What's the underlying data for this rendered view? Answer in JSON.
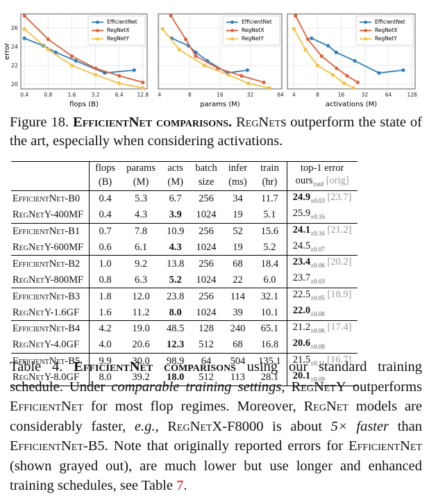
{
  "chart_data": [
    {
      "type": "line",
      "xlabel": "flops (B)",
      "ylabel": "error",
      "xscale": "log",
      "grid": true,
      "legend": "upper right",
      "xlim": [
        0.36,
        14.5
      ],
      "xticks": [
        0.4,
        0.8,
        1.6,
        3.2,
        6.4,
        12.8
      ],
      "ylim": [
        19.5,
        27.5
      ],
      "yticks": [
        20,
        22,
        24,
        26
      ],
      "series": [
        {
          "name": "EfficientNet",
          "color": "#2f7ebc",
          "x": [
            0.4,
            0.7,
            1.0,
            1.8,
            4.2,
            9.9
          ],
          "values": [
            24.9,
            24.1,
            23.4,
            22.5,
            21.2,
            21.5
          ]
        },
        {
          "name": "RegNetX",
          "color": "#e0603a",
          "x": [
            0.4,
            0.8,
            1.6,
            3.2,
            6.4,
            12.8
          ],
          "values": [
            27.3,
            24.8,
            23.0,
            21.7,
            20.9,
            20.2
          ]
        },
        {
          "name": "RegNetY",
          "color": "#f5c044",
          "x": [
            0.4,
            0.8,
            1.6,
            3.2,
            6.4,
            12.8
          ],
          "values": [
            25.9,
            23.7,
            22.0,
            21.0,
            20.1,
            19.6
          ]
        }
      ]
    },
    {
      "type": "line",
      "xlabel": "params (M)",
      "xscale": "log",
      "grid": true,
      "legend": "upper right",
      "xlim": [
        3.9,
        66
      ],
      "xticks": [
        4,
        8,
        16,
        32,
        64
      ],
      "ylim": [
        19.5,
        27.5
      ],
      "series": [
        {
          "name": "EfficientNet",
          "color": "#2f7ebc",
          "x": [
            5.3,
            7.8,
            9.2,
            12.0,
            19.0,
            30.0
          ],
          "values": [
            24.9,
            24.1,
            23.4,
            22.5,
            21.2,
            21.5
          ]
        },
        {
          "name": "RegNetX",
          "color": "#e0603a",
          "x": [
            5.2,
            7.3,
            9.2,
            15.3,
            26.2,
            43.7
          ],
          "values": [
            27.3,
            24.8,
            23.0,
            21.7,
            20.9,
            20.2
          ]
        },
        {
          "name": "RegNetY",
          "color": "#f5c044",
          "x": [
            4.3,
            6.3,
            11.2,
            19.4,
            30.6,
            49.6
          ],
          "values": [
            25.9,
            23.7,
            22.0,
            21.0,
            20.1,
            19.6
          ]
        }
      ]
    },
    {
      "type": "line",
      "xlabel": "activations (M)",
      "xscale": "log",
      "grid": true,
      "legend": "upper right",
      "xlim": [
        3.3,
        140
      ],
      "xticks": [
        4,
        8,
        16,
        32,
        64,
        128
      ],
      "ylim": [
        19.5,
        27.5
      ],
      "series": [
        {
          "name": "EfficientNet",
          "color": "#2f7ebc",
          "x": [
            6.7,
            10.9,
            13.8,
            23.8,
            48.5,
            98.9
          ],
          "values": [
            24.9,
            24.1,
            23.4,
            22.5,
            21.2,
            21.5
          ]
        },
        {
          "name": "RegNetX",
          "color": "#e0603a",
          "x": [
            4.2,
            6.0,
            9.0,
            14.0,
            19.0,
            26.0
          ],
          "values": [
            27.3,
            24.8,
            23.0,
            21.7,
            20.9,
            20.2
          ]
        },
        {
          "name": "RegNetY",
          "color": "#f5c044",
          "x": [
            4.0,
            5.6,
            8.0,
            12.5,
            17.5,
            23.0
          ],
          "values": [
            25.9,
            23.7,
            22.0,
            21.0,
            20.1,
            19.6
          ]
        }
      ]
    }
  ],
  "figure_caption": [
    "Figure 18.",
    "EfficientNet comparisons.",
    "RegNet",
    "s outperform the state of the art, especially when considering activations."
  ],
  "table": {
    "header": [
      [
        "flops",
        "(B)"
      ],
      [
        "params",
        "(M)"
      ],
      [
        "acts",
        "(M)"
      ],
      [
        "batch",
        "size"
      ],
      [
        "infer",
        "(ms)"
      ],
      [
        "train",
        "(hr)"
      ],
      [
        "top-1 error",
        "ours",
        "±std",
        "[orig]"
      ]
    ],
    "rows": [
      [
        "EfficientNet-B0",
        "0.4",
        "5.3",
        "6.7",
        "256",
        "34",
        "11.7",
        "24.9",
        "±0.03",
        "[23.7]"
      ],
      [
        "RegNetY-400MF",
        "0.4",
        "4.3",
        "3.9",
        "1024",
        "19",
        "5.1",
        "25.9",
        "±0.16"
      ],
      [
        "EfficientNet-B1",
        "0.7",
        "7.8",
        "10.9",
        "256",
        "52",
        "15.6",
        "24.1",
        "±0.16",
        "[21.2]"
      ],
      [
        "RegNetY-600MF",
        "0.6",
        "6.1",
        "4.3",
        "1024",
        "19",
        "5.2",
        "24.5",
        "±0.07"
      ],
      [
        "EfficientNet-B2",
        "1.0",
        "9.2",
        "13.8",
        "256",
        "68",
        "18.4",
        "23.4",
        "±0.06",
        "[20.2]"
      ],
      [
        "RegNetY-800MF",
        "0.8",
        "6.3",
        "5.2",
        "1024",
        "22",
        "6.0",
        "23.7",
        "±0.03"
      ],
      [
        "EfficientNet-B3",
        "1.8",
        "12.0",
        "23.8",
        "256",
        "114",
        "32.1",
        "22.5",
        "±0.05",
        "[18.9]"
      ],
      [
        "RegNetY-1.6GF",
        "1.6",
        "11.2",
        "8.0",
        "1024",
        "39",
        "10.1",
        "22.0",
        "±0.08"
      ],
      [
        "EfficientNet-B4",
        "4.2",
        "19.0",
        "48.5",
        "128",
        "240",
        "65.1",
        "21.2",
        "±0.06",
        "[17.4]"
      ],
      [
        "RegNetY-4.0GF",
        "4.0",
        "20.6",
        "12.3",
        "512",
        "68",
        "16.8",
        "20.6",
        "±0.08"
      ],
      [
        "EfficientNet-B5",
        "9.9",
        "30.0",
        "98.9",
        "64",
        "504",
        "135.1",
        "21.5",
        "±0.11",
        "[16.7]"
      ],
      [
        "RegNetY-8.0GF",
        "8.0",
        "39.2",
        "18.0",
        "512",
        "113",
        "28.1",
        "20.1",
        "±0.09"
      ]
    ]
  },
  "table_caption": [
    "Table 4.",
    "EfficientNet comparisons",
    "using our standard training schedule. Under",
    "comparable training settings",
    ",",
    "RegNetY",
    "outperforms",
    "EfficientNet",
    "for most flop regimes. Moreover,",
    "RegNet",
    "models are considerably faster,",
    "e.g.",
    ",",
    "RegNetX-F8000",
    "is about",
    "5× faster",
    "than",
    "EfficientNet-B5",
    ". Note that originally reported errors for",
    "EfficientNet",
    "(shown grayed out), are much lower but use longer and enhanced training schedules, see Table",
    "7",
    "."
  ]
}
